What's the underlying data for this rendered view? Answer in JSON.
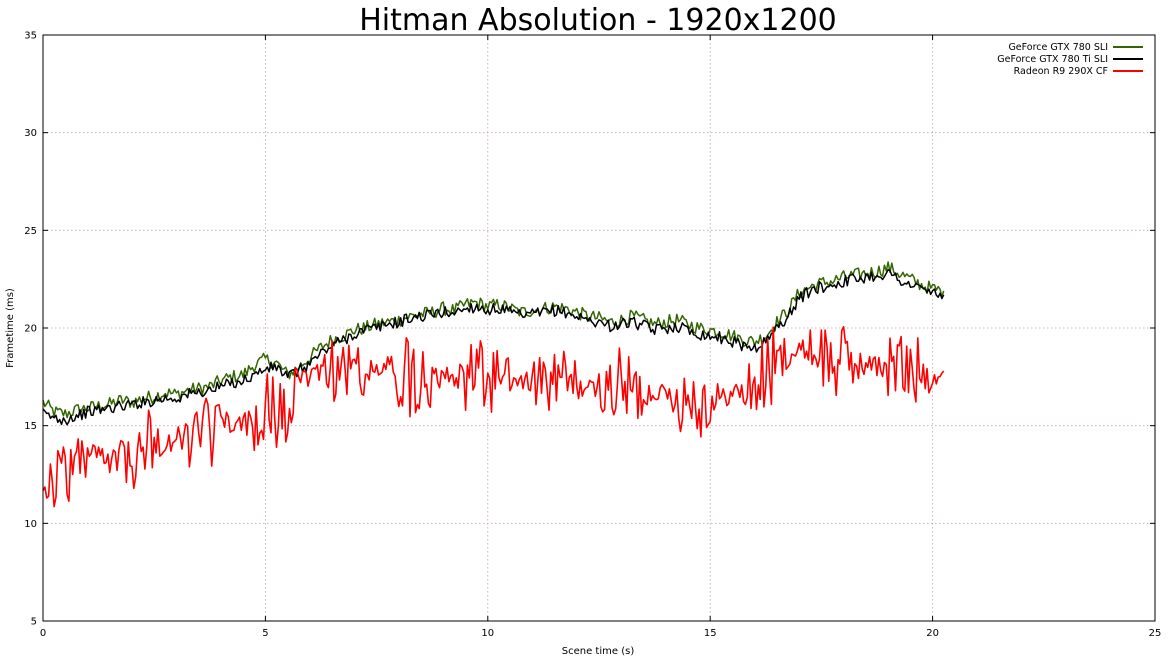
{
  "chart_data": {
    "type": "line",
    "title": "Hitman Absolution - 1920x1200",
    "xlabel": "Scene time (s)",
    "ylabel": "Frametime (ms)",
    "xlim": [
      0,
      25
    ],
    "ylim": [
      5,
      35
    ],
    "x_ticks": [
      "0",
      "5",
      "10",
      "15",
      "20",
      "25"
    ],
    "y_ticks": [
      "5",
      "10",
      "15",
      "20",
      "25",
      "30",
      "35"
    ],
    "grid": true,
    "legend_position": "top-right",
    "series": [
      {
        "name": "GeForce GTX 780 SLI",
        "color": "#336600",
        "sample_interval": 0.25,
        "values": [
          16.2,
          15.7,
          15.6,
          15.8,
          15.9,
          16.0,
          16.1,
          16.3,
          16.2,
          16.4,
          16.5,
          16.7,
          16.6,
          16.8,
          16.9,
          17.0,
          17.3,
          17.5,
          17.6,
          18.1,
          18.4,
          18.2,
          17.6,
          18.0,
          18.5,
          19.0,
          19.4,
          19.6,
          19.9,
          20.0,
          20.2,
          20.3,
          20.4,
          20.6,
          20.7,
          20.8,
          21.0,
          20.9,
          21.2,
          21.3,
          21.1,
          21.2,
          21.0,
          20.8,
          20.9,
          21.0,
          21.1,
          21.0,
          20.8,
          20.6,
          20.5,
          20.3,
          20.4,
          20.6,
          20.4,
          20.2,
          20.3,
          20.4,
          20.2,
          20.0,
          19.9,
          19.8,
          19.6,
          19.4,
          19.3,
          19.6,
          20.3,
          20.9,
          21.8,
          22.1,
          22.3,
          22.4,
          22.6,
          22.7,
          22.8,
          22.9,
          23.1,
          22.8,
          22.5,
          22.2,
          22.0,
          21.9
        ]
      },
      {
        "name": "GeForce GTX 780 Ti SLI",
        "color": "#000000",
        "sample_interval": 0.25,
        "values": [
          15.6,
          15.4,
          15.3,
          15.5,
          15.7,
          15.8,
          15.9,
          16.0,
          16.1,
          16.2,
          16.3,
          16.4,
          16.4,
          16.6,
          16.7,
          16.8,
          17.0,
          17.2,
          17.3,
          17.6,
          17.9,
          18.0,
          17.5,
          17.8,
          18.2,
          18.7,
          19.1,
          19.4,
          19.7,
          19.9,
          20.0,
          20.2,
          20.3,
          20.5,
          20.6,
          20.7,
          20.8,
          20.8,
          21.0,
          21.1,
          20.9,
          21.0,
          20.8,
          20.6,
          20.7,
          20.8,
          20.9,
          20.8,
          20.6,
          20.4,
          20.3,
          20.1,
          20.2,
          20.3,
          20.1,
          19.9,
          20.0,
          20.1,
          19.9,
          19.7,
          19.6,
          19.5,
          19.3,
          19.1,
          19.0,
          19.3,
          20.0,
          20.6,
          21.5,
          21.9,
          22.1,
          22.2,
          22.4,
          22.5,
          22.6,
          22.7,
          22.8,
          22.5,
          22.2,
          22.0,
          21.8,
          21.7
        ]
      },
      {
        "name": "Radeon R9 290X CF",
        "color": "#ff0000",
        "sample_interval": 0.25,
        "values": [
          12.5,
          12.0,
          12.8,
          13.2,
          13.5,
          13.6,
          13.4,
          13.8,
          13.9,
          14.1,
          14.3,
          14.0,
          14.2,
          14.5,
          14.3,
          14.6,
          14.8,
          14.9,
          15.1,
          15.2,
          15.4,
          15.6,
          15.7,
          17.0,
          17.6,
          17.9,
          18.0,
          17.7,
          17.9,
          17.6,
          17.8,
          17.9,
          17.5,
          17.7,
          17.8,
          17.6,
          17.9,
          17.5,
          17.4,
          17.6,
          17.3,
          17.5,
          17.2,
          17.4,
          17.1,
          17.3,
          17.0,
          17.2,
          17.0,
          16.9,
          16.8,
          16.9,
          17.0,
          16.7,
          16.6,
          16.8,
          16.6,
          16.4,
          16.5,
          16.3,
          16.2,
          16.4,
          16.6,
          16.8,
          17.0,
          17.6,
          18.2,
          18.6,
          18.8,
          18.9,
          18.6,
          18.3,
          18.5,
          18.2,
          18.0,
          18.3,
          18.1,
          17.9,
          17.6,
          17.8,
          17.5,
          17.8
        ]
      }
    ]
  }
}
